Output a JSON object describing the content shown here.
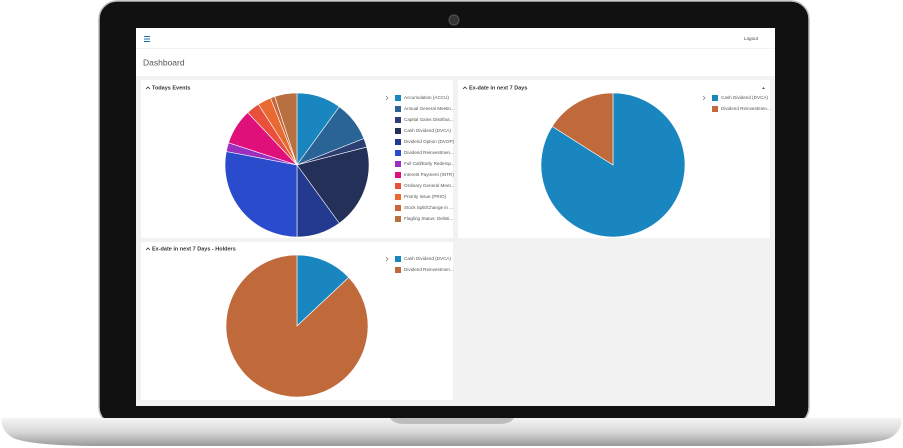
{
  "header": {
    "logout": "Logout"
  },
  "page_title": "Dashboard",
  "chart_data": [
    {
      "type": "pie",
      "title": "Todays Events",
      "categories": [
        "Accumulation (ACCU)",
        "Annual General Meetin...",
        "Capital Gains Distribut...",
        "Cash Dividend (DVCA)",
        "Dividend Option (DVOP)",
        "Dividend Reinvestmen...",
        "Full Call/Early Redemp...",
        "Interest Payment (INTR)",
        "Ordinary General Meet...",
        "Priority Issue (PRIO)",
        "Stock Split/Change in ...",
        "Flagling Status: Delisti..."
      ],
      "values": [
        10,
        9,
        2,
        19,
        10,
        28,
        2,
        8,
        3,
        3,
        1,
        5
      ],
      "colors": [
        "#1a86c0",
        "#2a6496",
        "#2b3f73",
        "#253058",
        "#243a8e",
        "#2a4bcc",
        "#9b30c0",
        "#e0107a",
        "#e8503c",
        "#e86a30",
        "#c8683a",
        "#b87040"
      ]
    },
    {
      "type": "pie",
      "title": "Ex-date in next 7 Days",
      "categories": [
        "Cash Dividend (DVCA)",
        "Dividend Reinvestmen..."
      ],
      "values": [
        84,
        16
      ],
      "colors": [
        "#1a86c0",
        "#c06a3c"
      ]
    },
    {
      "type": "pie",
      "title": "Ex-date in next 7 Days - Holders",
      "categories": [
        "Cash Dividend (DVCA)",
        "Dividend Reinvestmen..."
      ],
      "values": [
        13,
        87
      ],
      "colors": [
        "#1a86c0",
        "#c06a3c"
      ]
    }
  ]
}
